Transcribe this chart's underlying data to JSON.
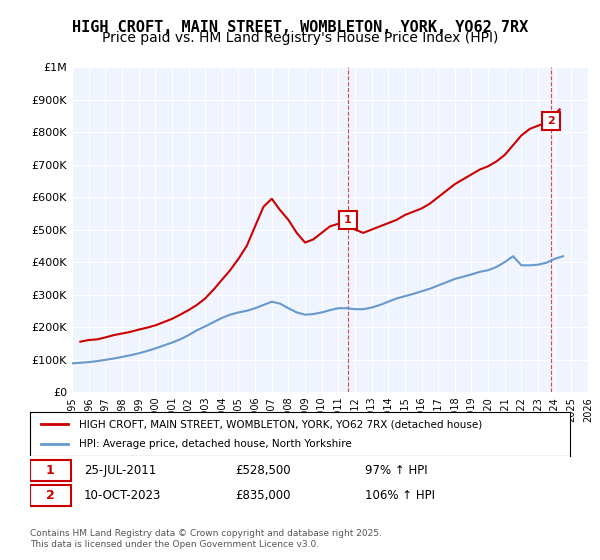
{
  "title": "HIGH CROFT, MAIN STREET, WOMBLETON, YORK, YO62 7RX",
  "subtitle": "Price paid vs. HM Land Registry's House Price Index (HPI)",
  "title_fontsize": 11,
  "subtitle_fontsize": 10,
  "bg_color": "#f0f4ff",
  "plot_bg_color": "#f0f4ff",
  "ylabel_ticks": [
    "£0",
    "£100K",
    "£200K",
    "£300K",
    "£400K",
    "£500K",
    "£600K",
    "£700K",
    "£800K",
    "£900K",
    "£1M"
  ],
  "ytick_values": [
    0,
    100000,
    200000,
    300000,
    400000,
    500000,
    600000,
    700000,
    800000,
    900000,
    1000000
  ],
  "ylim": [
    0,
    1000000
  ],
  "xmin_year": 1995,
  "xmax_year": 2026,
  "xtick_years": [
    1995,
    1996,
    1997,
    1998,
    1999,
    2000,
    2001,
    2002,
    2003,
    2004,
    2005,
    2006,
    2007,
    2008,
    2009,
    2010,
    2011,
    2012,
    2013,
    2014,
    2015,
    2016,
    2017,
    2018,
    2019,
    2020,
    2021,
    2022,
    2023,
    2024,
    2025,
    2026
  ],
  "red_color": "#cc0000",
  "blue_color": "#6699cc",
  "marker1_x": 2011.57,
  "marker1_y": 528500,
  "marker2_x": 2023.78,
  "marker2_y": 835000,
  "marker1_label": "1",
  "marker2_label": "2",
  "annotation1": "25-JUL-2011    £528,500    97% ↑ HPI",
  "annotation2": "10-OCT-2023    £835,000    106% ↑ HPI",
  "legend_line1": "HIGH CROFT, MAIN STREET, WOMBLETON, YORK, YO62 7RX (detached house)",
  "legend_line2": "HPI: Average price, detached house, North Yorkshire",
  "footer": "Contains HM Land Registry data © Crown copyright and database right 2025.\nThis data is licensed under the Open Government Licence v3.0.",
  "red_x": [
    1995.5,
    1996.0,
    1996.5,
    1997.0,
    1997.5,
    1998.0,
    1998.5,
    1999.0,
    1999.5,
    2000.0,
    2000.5,
    2001.0,
    2001.5,
    2002.0,
    2002.5,
    2003.0,
    2003.5,
    2004.0,
    2004.5,
    2005.0,
    2005.5,
    2006.0,
    2006.5,
    2007.0,
    2007.5,
    2008.0,
    2008.5,
    2009.0,
    2009.5,
    2010.0,
    2010.5,
    2011.0,
    2011.57,
    2012.0,
    2012.5,
    2013.0,
    2013.5,
    2014.0,
    2014.5,
    2015.0,
    2015.5,
    2016.0,
    2016.5,
    2017.0,
    2017.5,
    2018.0,
    2018.5,
    2019.0,
    2019.5,
    2020.0,
    2020.5,
    2021.0,
    2021.5,
    2022.0,
    2022.5,
    2023.0,
    2023.78,
    2024.0,
    2024.3
  ],
  "red_y": [
    155000,
    160000,
    162000,
    168000,
    175000,
    180000,
    185000,
    192000,
    198000,
    205000,
    215000,
    225000,
    238000,
    252000,
    268000,
    288000,
    315000,
    345000,
    375000,
    410000,
    450000,
    510000,
    570000,
    595000,
    560000,
    530000,
    490000,
    460000,
    470000,
    490000,
    510000,
    518000,
    528500,
    500000,
    490000,
    500000,
    510000,
    520000,
    530000,
    545000,
    555000,
    565000,
    580000,
    600000,
    620000,
    640000,
    655000,
    670000,
    685000,
    695000,
    710000,
    730000,
    760000,
    790000,
    810000,
    820000,
    835000,
    855000,
    870000
  ],
  "blue_x": [
    1995.0,
    1995.5,
    1996.0,
    1996.5,
    1997.0,
    1997.5,
    1998.0,
    1998.5,
    1999.0,
    1999.5,
    2000.0,
    2000.5,
    2001.0,
    2001.5,
    2002.0,
    2002.5,
    2003.0,
    2003.5,
    2004.0,
    2004.5,
    2005.0,
    2005.5,
    2006.0,
    2006.5,
    2007.0,
    2007.5,
    2008.0,
    2008.5,
    2009.0,
    2009.5,
    2010.0,
    2010.5,
    2011.0,
    2011.5,
    2012.0,
    2012.5,
    2013.0,
    2013.5,
    2014.0,
    2014.5,
    2015.0,
    2015.5,
    2016.0,
    2016.5,
    2017.0,
    2017.5,
    2018.0,
    2018.5,
    2019.0,
    2019.5,
    2020.0,
    2020.5,
    2021.0,
    2021.5,
    2022.0,
    2022.5,
    2023.0,
    2023.5,
    2024.0,
    2024.5
  ],
  "blue_y": [
    88000,
    90000,
    92000,
    95000,
    99000,
    103000,
    108000,
    113000,
    119000,
    126000,
    134000,
    143000,
    152000,
    162000,
    175000,
    190000,
    202000,
    215000,
    228000,
    238000,
    245000,
    250000,
    258000,
    268000,
    278000,
    272000,
    258000,
    245000,
    238000,
    240000,
    245000,
    252000,
    258000,
    258000,
    255000,
    255000,
    260000,
    268000,
    278000,
    288000,
    295000,
    302000,
    310000,
    318000,
    328000,
    338000,
    348000,
    355000,
    362000,
    370000,
    375000,
    385000,
    400000,
    418000,
    390000,
    390000,
    392000,
    398000,
    410000,
    418000
  ]
}
